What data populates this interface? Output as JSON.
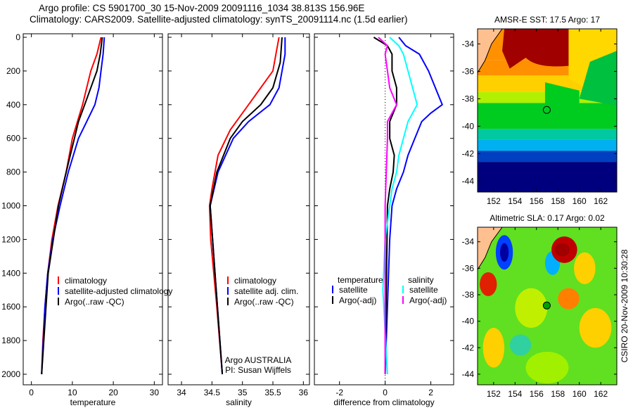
{
  "header": {
    "line1": "Argo profile: CS 5901700_30 15-Nov-2009 20091116_1034 38.813S 156.96E",
    "line2": "Climatology: CARS2009. Satellite-adjusted climatology: synTS_20091114.nc (1.5d earlier)"
  },
  "credit": "CSIRO 20-Nov-2009 10:30:28",
  "colors": {
    "red": "#ff0000",
    "blue": "#0000ff",
    "black": "#000000",
    "cyan": "#00ffff",
    "magenta": "#ff00ff"
  },
  "chart_data": [
    {
      "type": "line",
      "id": "temperature",
      "xlabel": "temperature",
      "ylabel": "depth",
      "xlim": [
        -2,
        32
      ],
      "ylim": [
        2050,
        0
      ],
      "xticks": [
        0,
        10,
        20,
        30
      ],
      "yticks": [
        0,
        200,
        400,
        600,
        800,
        1000,
        1200,
        1400,
        1600,
        1800,
        2000
      ],
      "legend": [
        "climatology",
        "satellite-adjusted climatology",
        "Argo(..raw -QC)"
      ],
      "legend_placement": "center",
      "series": [
        {
          "name": "climatology",
          "color": "#ff0000",
          "depth": [
            0,
            100,
            200,
            400,
            600,
            800,
            1000,
            1200,
            1400,
            1600,
            1800,
            2000
          ],
          "values": [
            17,
            16,
            14.5,
            12.5,
            10,
            8.5,
            6.5,
            5,
            4,
            3.3,
            2.8,
            2.5
          ]
        },
        {
          "name": "satellite-adjusted climatology",
          "color": "#0000ff",
          "depth": [
            0,
            100,
            200,
            300,
            400,
            500,
            600,
            800,
            1000,
            1200,
            1400,
            1600,
            2000
          ],
          "values": [
            17.8,
            17.5,
            17,
            16.5,
            15.5,
            13.5,
            11.5,
            9,
            7,
            5.2,
            4,
            3.3,
            2.5
          ]
        },
        {
          "name": "Argo(..raw -QC)",
          "color": "#000000",
          "depth": [
            0,
            100,
            200,
            300,
            400,
            500,
            600,
            800,
            1000,
            1400,
            2000
          ],
          "values": [
            17.3,
            16.8,
            16,
            14.5,
            13,
            11.5,
            10.5,
            8.5,
            6.6,
            4.1,
            2.5
          ]
        }
      ]
    },
    {
      "type": "line",
      "id": "salinity",
      "xlabel": "salinity",
      "xlim": [
        33.78,
        36.1
      ],
      "ylim": [
        2050,
        0
      ],
      "xticks": [
        34,
        34.5,
        35,
        35.5,
        36
      ],
      "legend": [
        "climatology",
        "satellite adj. clim.",
        "Argo(..raw -QC)"
      ],
      "annotation": [
        "Argo AUSTRALIA",
        "PI: Susan Wijffels"
      ],
      "series": [
        {
          "name": "climatology",
          "color": "#ff0000",
          "depth": [
            0,
            100,
            200,
            300,
            400,
            500,
            550,
            700,
            900,
            1000,
            1200,
            1600,
            2000
          ],
          "values": [
            35.6,
            35.55,
            35.5,
            35.3,
            35.1,
            34.9,
            34.8,
            34.6,
            34.5,
            34.46,
            34.48,
            34.58,
            34.67
          ]
        },
        {
          "name": "satellite adj. clim.",
          "color": "#0000ff",
          "depth": [
            0,
            100,
            200,
            300,
            400,
            500,
            600,
            800,
            1000,
            1500,
            2000
          ],
          "values": [
            35.7,
            35.7,
            35.65,
            35.6,
            35.45,
            35.1,
            34.85,
            34.6,
            34.47,
            34.57,
            34.67
          ]
        },
        {
          "name": "Argo(..raw -QC)",
          "color": "#000000",
          "depth": [
            0,
            150,
            300,
            400,
            500,
            600,
            800,
            1000,
            1500,
            2000
          ],
          "values": [
            35.65,
            35.62,
            35.5,
            35.3,
            35.0,
            34.8,
            34.58,
            34.47,
            34.57,
            34.67
          ]
        }
      ]
    },
    {
      "type": "line",
      "id": "difference",
      "xlabel": "difference from climatology",
      "xlim": [
        -3.1,
        3.0
      ],
      "ylim": [
        2050,
        0
      ],
      "xticks": [
        -2,
        0,
        2
      ],
      "legend_groups": [
        {
          "title": "temperature",
          "items": [
            "satellite",
            "Argo(-adj)"
          ]
        },
        {
          "title": "salinity",
          "items": [
            "satellite",
            "Argo(-adj)"
          ]
        }
      ],
      "series": [
        {
          "name": "temperature satellite",
          "color": "#0000ff",
          "depth": [
            0,
            50,
            100,
            200,
            300,
            400,
            450,
            500,
            600,
            700,
            800,
            900,
            1000,
            1200,
            2000
          ],
          "values": [
            0.6,
            0.9,
            1.5,
            1.9,
            2.2,
            2.5,
            2.0,
            1.6,
            1.3,
            1.0,
            0.8,
            0.5,
            0.3,
            0.2,
            0
          ]
        },
        {
          "name": "temperature Argo(-adj)",
          "color": "#000000",
          "depth": [
            0,
            50,
            100,
            200,
            300,
            400,
            500,
            600,
            700,
            800,
            900,
            1000,
            2000
          ],
          "values": [
            -0.5,
            0.1,
            0.3,
            0.3,
            0.5,
            0.5,
            0.2,
            0.2,
            0.4,
            0.35,
            0.2,
            0.1,
            0
          ]
        },
        {
          "name": "salinity satellite",
          "color": "#00ffff",
          "depth": [
            0,
            50,
            100,
            200,
            300,
            400,
            500,
            600,
            700,
            800,
            900,
            1200,
            1500,
            2000
          ],
          "values": [
            0.2,
            0.6,
            0.8,
            1.0,
            1.2,
            1.4,
            1.0,
            0.8,
            0.6,
            0.5,
            0.3,
            0,
            -0.1,
            0.1
          ]
        },
        {
          "name": "salinity Argo(-adj)",
          "color": "#ff00ff",
          "depth": [
            0,
            50,
            100,
            200,
            300,
            400,
            500,
            600,
            800,
            1000,
            2000
          ],
          "values": [
            -0.3,
            0.1,
            0,
            0.1,
            0.2,
            0.5,
            0.1,
            0.1,
            0.05,
            0,
            0
          ]
        }
      ]
    },
    {
      "type": "heatmap",
      "id": "sst-map",
      "title": "AMSR-E SST: 17.5 Argo: 17",
      "xlim": [
        150.5,
        163.5
      ],
      "ylim": [
        -44.8,
        -32.9
      ],
      "xticks": [
        152,
        154,
        156,
        158,
        160,
        162
      ],
      "yticks": [
        -34,
        -36,
        -38,
        -40,
        -42,
        -44
      ],
      "marker": {
        "lon": 156.96,
        "lat": -38.813
      }
    },
    {
      "type": "heatmap",
      "id": "sla-map",
      "title": "Altimetric SLA: 0.17 Argo: 0.02",
      "xlim": [
        150.5,
        163.5
      ],
      "ylim": [
        -44.8,
        -32.9
      ],
      "xticks": [
        152,
        154,
        156,
        158,
        160,
        162
      ],
      "yticks": [
        -34,
        -36,
        -38,
        -40,
        -42,
        -44
      ],
      "marker": {
        "lon": 156.96,
        "lat": -38.813
      }
    }
  ]
}
